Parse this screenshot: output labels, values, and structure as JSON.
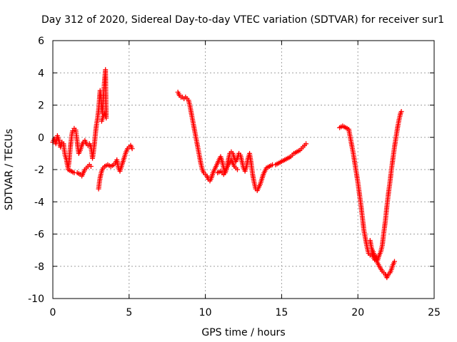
{
  "chart_data": {
    "type": "scatter",
    "title": "Day 312 of 2020, Sidereal Day-to-day VTEC variation (SDTVAR) for receiver sur1",
    "xlabel": "GPS time / hours",
    "ylabel": "SDTVAR / TECUs",
    "xlim": [
      0,
      25
    ],
    "ylim": [
      -10,
      6
    ],
    "xticks": [
      0,
      5,
      10,
      15,
      20,
      25
    ],
    "yticks": [
      -10,
      -8,
      -6,
      -4,
      -2,
      0,
      2,
      4,
      6
    ],
    "xtick_labels": [
      "0",
      "5",
      "10",
      "15",
      "20",
      "25"
    ],
    "ytick_labels": [
      "-10",
      "-8",
      "-6",
      "-4",
      "-2",
      "0",
      "2",
      "4",
      "6"
    ],
    "grid": true,
    "marker": "+",
    "series": [
      {
        "name": "sur1 segment 1",
        "color": "#ff0000",
        "points": [
          [
            0.0,
            -0.3
          ],
          [
            0.1,
            -0.1
          ],
          [
            0.2,
            -0.4
          ],
          [
            0.3,
            0.1
          ],
          [
            0.4,
            -0.2
          ],
          [
            0.5,
            -0.6
          ],
          [
            0.6,
            -0.3
          ],
          [
            0.7,
            -0.4
          ],
          [
            0.75,
            -0.8
          ],
          [
            0.8,
            -1.1
          ],
          [
            0.9,
            -1.4
          ],
          [
            0.95,
            -1.7
          ],
          [
            1.0,
            -1.9
          ],
          [
            1.05,
            -1.6
          ],
          [
            1.1,
            -1.1
          ],
          [
            1.15,
            -0.6
          ],
          [
            1.2,
            -0.2
          ],
          [
            1.25,
            0.2
          ],
          [
            1.3,
            0.4
          ],
          [
            1.4,
            0.55
          ],
          [
            1.5,
            0.45
          ],
          [
            1.55,
            0.1
          ],
          [
            1.6,
            -0.3
          ],
          [
            1.65,
            -0.7
          ],
          [
            1.7,
            -1.0
          ],
          [
            1.8,
            -0.8
          ],
          [
            1.9,
            -0.5
          ],
          [
            2.0,
            -0.3
          ],
          [
            2.1,
            -0.2
          ],
          [
            2.2,
            -0.4
          ],
          [
            2.3,
            -0.5
          ],
          [
            2.4,
            -0.4
          ],
          [
            2.5,
            -0.6
          ],
          [
            2.55,
            -0.9
          ],
          [
            2.6,
            -1.3
          ],
          [
            2.65,
            -1.0
          ],
          [
            2.7,
            -0.6
          ],
          [
            2.75,
            -0.2
          ],
          [
            2.8,
            0.3
          ],
          [
            2.85,
            0.7
          ],
          [
            2.9,
            1.0
          ],
          [
            2.95,
            1.3
          ],
          [
            3.0,
            1.7
          ],
          [
            3.05,
            2.3
          ],
          [
            3.1,
            2.9
          ],
          [
            3.15,
            2.5
          ],
          [
            3.2,
            1.8
          ],
          [
            3.25,
            1.5
          ],
          [
            3.3,
            2.3
          ],
          [
            3.35,
            3.0
          ],
          [
            3.4,
            3.6
          ],
          [
            3.45,
            4.2
          ],
          [
            3.5,
            1.2
          ],
          [
            3.4,
            1.5
          ],
          [
            3.3,
            1.3
          ],
          [
            3.2,
            1.0
          ]
        ]
      },
      {
        "name": "sur1 segment 2",
        "color": "#ff0000",
        "points": [
          [
            1.0,
            -2.0
          ],
          [
            1.2,
            -2.1
          ],
          [
            1.4,
            -2.2
          ],
          [
            1.6,
            -2.2
          ],
          [
            1.8,
            -2.3
          ],
          [
            1.9,
            -2.4
          ],
          [
            2.0,
            -2.2
          ],
          [
            2.1,
            -2.0
          ],
          [
            2.2,
            -1.9
          ],
          [
            2.3,
            -1.8
          ],
          [
            2.4,
            -1.7
          ],
          [
            2.5,
            -1.8
          ]
        ]
      },
      {
        "name": "sur1 segment 3",
        "color": "#ff0000",
        "points": [
          [
            3.0,
            -3.2
          ],
          [
            3.05,
            -2.8
          ],
          [
            3.1,
            -2.5
          ],
          [
            3.15,
            -2.3
          ],
          [
            3.2,
            -2.1
          ],
          [
            3.3,
            -1.9
          ],
          [
            3.4,
            -1.8
          ],
          [
            3.6,
            -1.7
          ],
          [
            3.8,
            -1.8
          ],
          [
            4.0,
            -1.7
          ],
          [
            4.1,
            -1.6
          ],
          [
            4.2,
            -1.4
          ],
          [
            4.3,
            -1.9
          ],
          [
            4.4,
            -2.1
          ],
          [
            4.5,
            -1.8
          ],
          [
            4.6,
            -1.5
          ],
          [
            4.7,
            -1.2
          ],
          [
            4.8,
            -0.9
          ],
          [
            4.9,
            -0.7
          ],
          [
            5.0,
            -0.6
          ],
          [
            5.1,
            -0.5
          ],
          [
            5.2,
            -0.7
          ]
        ]
      },
      {
        "name": "sur1 segment 4",
        "color": "#ff0000",
        "points": [
          [
            8.2,
            2.8
          ],
          [
            8.3,
            2.6
          ],
          [
            8.4,
            2.5
          ],
          [
            8.5,
            2.5
          ],
          [
            8.6,
            2.4
          ],
          [
            8.7,
            2.5
          ],
          [
            8.8,
            2.4
          ],
          [
            8.9,
            2.3
          ],
          [
            9.0,
            1.9
          ],
          [
            9.1,
            1.4
          ],
          [
            9.2,
            0.9
          ],
          [
            9.3,
            0.4
          ],
          [
            9.4,
            -0.1
          ],
          [
            9.5,
            -0.6
          ],
          [
            9.6,
            -1.1
          ],
          [
            9.7,
            -1.6
          ],
          [
            9.8,
            -2.0
          ],
          [
            9.9,
            -2.2
          ],
          [
            10.0,
            -2.3
          ],
          [
            10.1,
            -2.4
          ],
          [
            10.2,
            -2.6
          ],
          [
            10.3,
            -2.7
          ],
          [
            10.4,
            -2.5
          ],
          [
            10.5,
            -2.2
          ],
          [
            10.6,
            -2.0
          ],
          [
            10.7,
            -1.8
          ],
          [
            10.8,
            -1.6
          ],
          [
            10.9,
            -1.4
          ],
          [
            11.0,
            -1.2
          ],
          [
            11.1,
            -1.5
          ],
          [
            11.2,
            -1.9
          ],
          [
            11.3,
            -2.2
          ],
          [
            11.4,
            -1.9
          ],
          [
            11.5,
            -1.4
          ],
          [
            11.6,
            -1.0
          ],
          [
            11.7,
            -0.9
          ],
          [
            11.8,
            -1.0
          ],
          [
            11.9,
            -1.3
          ],
          [
            12.0,
            -1.5
          ],
          [
            12.1,
            -1.3
          ],
          [
            12.2,
            -1.0
          ],
          [
            12.3,
            -1.1
          ],
          [
            12.4,
            -1.5
          ],
          [
            12.5,
            -1.9
          ],
          [
            12.6,
            -2.1
          ],
          [
            12.7,
            -1.8
          ],
          [
            12.8,
            -1.3
          ],
          [
            12.9,
            -1.0
          ],
          [
            13.0,
            -1.6
          ],
          [
            13.1,
            -2.3
          ],
          [
            13.2,
            -2.8
          ],
          [
            13.3,
            -3.2
          ],
          [
            13.4,
            -3.3
          ],
          [
            13.5,
            -3.1
          ],
          [
            13.6,
            -2.9
          ],
          [
            13.7,
            -2.6
          ],
          [
            13.8,
            -2.3
          ],
          [
            13.9,
            -2.1
          ],
          [
            14.0,
            -1.9
          ],
          [
            14.2,
            -1.8
          ],
          [
            14.4,
            -1.7
          ],
          [
            14.6,
            -1.7
          ],
          [
            14.8,
            -1.6
          ],
          [
            15.0,
            -1.5
          ],
          [
            15.2,
            -1.4
          ],
          [
            15.4,
            -1.3
          ],
          [
            15.6,
            -1.2
          ],
          [
            15.8,
            -1.0
          ],
          [
            16.0,
            -0.9
          ],
          [
            16.2,
            -0.8
          ],
          [
            16.4,
            -0.6
          ],
          [
            16.6,
            -0.4
          ]
        ]
      },
      {
        "name": "sur1 segment 5",
        "color": "#ff0000",
        "points": [
          [
            10.8,
            -2.2
          ],
          [
            11.0,
            -2.1
          ],
          [
            11.2,
            -2.3
          ],
          [
            11.5,
            -1.7
          ],
          [
            11.7,
            -1.4
          ],
          [
            11.9,
            -1.8
          ],
          [
            12.1,
            -2.0
          ]
        ]
      },
      {
        "name": "sur1 segment 6",
        "color": "#ff0000",
        "points": [
          [
            18.8,
            0.6
          ],
          [
            19.0,
            0.7
          ],
          [
            19.2,
            0.6
          ],
          [
            19.4,
            0.5
          ],
          [
            19.5,
            0.0
          ],
          [
            19.6,
            -0.5
          ],
          [
            19.7,
            -1.0
          ],
          [
            19.8,
            -1.6
          ],
          [
            19.9,
            -2.2
          ],
          [
            20.0,
            -2.8
          ],
          [
            20.1,
            -3.5
          ],
          [
            20.2,
            -4.2
          ],
          [
            20.3,
            -5.0
          ],
          [
            20.4,
            -5.8
          ],
          [
            20.5,
            -6.3
          ],
          [
            20.6,
            -6.8
          ],
          [
            20.7,
            -7.2
          ],
          [
            20.8,
            -7.3
          ],
          [
            20.9,
            -7.2
          ],
          [
            21.0,
            -7.4
          ],
          [
            21.1,
            -7.6
          ],
          [
            21.2,
            -7.4
          ],
          [
            21.3,
            -7.6
          ],
          [
            21.4,
            -7.3
          ],
          [
            21.5,
            -7.1
          ],
          [
            21.6,
            -6.7
          ],
          [
            21.7,
            -5.9
          ],
          [
            21.8,
            -5.2
          ],
          [
            21.9,
            -4.3
          ],
          [
            22.0,
            -3.5
          ],
          [
            22.1,
            -2.8
          ],
          [
            22.2,
            -2.0
          ],
          [
            22.3,
            -1.3
          ],
          [
            22.4,
            -0.6
          ],
          [
            22.5,
            0.0
          ],
          [
            22.6,
            0.6
          ],
          [
            22.7,
            1.1
          ],
          [
            22.8,
            1.5
          ],
          [
            22.85,
            1.6
          ]
        ]
      },
      {
        "name": "sur1 segment 7",
        "color": "#ff0000",
        "points": [
          [
            20.8,
            -6.4
          ],
          [
            20.9,
            -6.9
          ],
          [
            21.0,
            -7.1
          ],
          [
            21.2,
            -7.6
          ],
          [
            21.4,
            -8.0
          ],
          [
            21.6,
            -8.3
          ],
          [
            21.8,
            -8.5
          ],
          [
            21.9,
            -8.7
          ],
          [
            22.0,
            -8.5
          ],
          [
            22.1,
            -8.4
          ],
          [
            22.2,
            -8.2
          ],
          [
            22.3,
            -7.9
          ],
          [
            22.4,
            -7.7
          ]
        ]
      }
    ]
  }
}
